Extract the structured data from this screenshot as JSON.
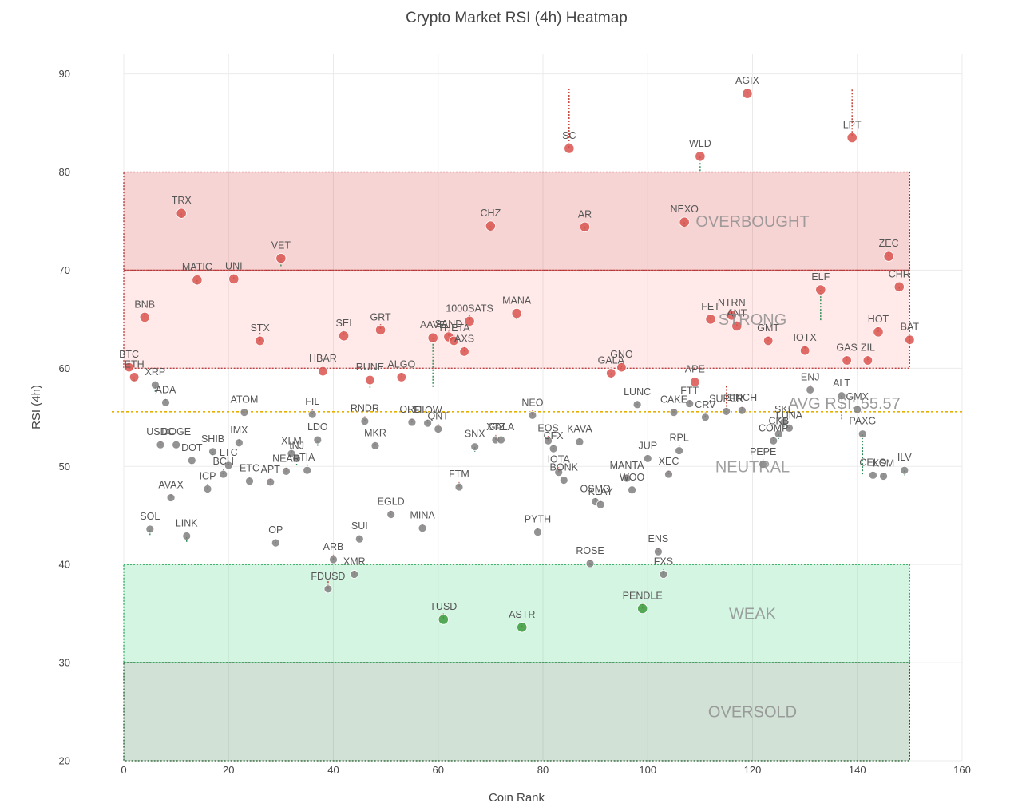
{
  "chart_data": {
    "type": "scatter",
    "title": "Crypto Market RSI (4h) Heatmap",
    "xlabel": "Coin Rank",
    "ylabel": "RSI (4h)",
    "xlim": [
      0,
      160
    ],
    "ylim": [
      20,
      92
    ],
    "xticks": [
      0,
      20,
      40,
      60,
      80,
      100,
      120,
      140,
      160
    ],
    "yticks": [
      20,
      30,
      40,
      50,
      60,
      70,
      80,
      90
    ],
    "grid": true,
    "avg_rsi": 55.57,
    "avg_label": "AVG RSI: 55.57",
    "colors": {
      "overbought": "#d62728",
      "strong": "#ff6b6b",
      "weak": "#2ecc71",
      "oversold": "#1e6b2e",
      "avg_line": "#e6b000",
      "point_red": "#d9534f",
      "point_green": "#3c9a3c",
      "point_gray": "#808080"
    },
    "zones": [
      {
        "label": "OVERBOUGHT",
        "y0": 70,
        "y1": 80,
        "x0": 0,
        "x1": 150
      },
      {
        "label": "STRONG",
        "y0": 60,
        "y1": 70,
        "x0": 0,
        "x1": 150
      },
      {
        "label": "NEUTRAL",
        "y0": 40,
        "y1": 60,
        "x0": 0,
        "x1": 150
      },
      {
        "label": "WEAK",
        "y0": 30,
        "y1": 40,
        "x0": 0,
        "x1": 150
      },
      {
        "label": "OVERSOLD",
        "y0": 20,
        "y1": 30,
        "x0": 0,
        "x1": 150
      }
    ],
    "points": [
      {
        "name": "BTC",
        "x": 1,
        "y": 60.1,
        "y_prev": 60.8
      },
      {
        "name": "ETH",
        "x": 2,
        "y": 59.1,
        "y_prev": 58.7
      },
      {
        "name": "XRP",
        "x": 6,
        "y": 58.3,
        "y_prev": 57.6
      },
      {
        "name": "BNB",
        "x": 4,
        "y": 65.2,
        "y_prev": 65.6
      },
      {
        "name": "ADA",
        "x": 8,
        "y": 56.5,
        "y_prev": 56.9
      },
      {
        "name": "USDC",
        "x": 7,
        "y": 52.2,
        "y_prev": 52.6
      },
      {
        "name": "DOGE",
        "x": 10,
        "y": 52.2,
        "y_prev": 51.8
      },
      {
        "name": "DOT",
        "x": 13,
        "y": 50.6,
        "y_prev": 50.2
      },
      {
        "name": "TRX",
        "x": 11,
        "y": 75.8,
        "y_prev": 75.3
      },
      {
        "name": "AVAX",
        "x": 9,
        "y": 46.8,
        "y_prev": 47.2
      },
      {
        "name": "SOL",
        "x": 5,
        "y": 43.6,
        "y_prev": 43.0
      },
      {
        "name": "LINK",
        "x": 12,
        "y": 42.9,
        "y_prev": 42.3
      },
      {
        "name": "MATIC",
        "x": 14,
        "y": 69.0,
        "y_prev": 68.5
      },
      {
        "name": "SHIB",
        "x": 17,
        "y": 51.5,
        "y_prev": 51.1
      },
      {
        "name": "ICP",
        "x": 16,
        "y": 47.7,
        "y_prev": 48.2
      },
      {
        "name": "LTC",
        "x": 20,
        "y": 50.1,
        "y_prev": 50.6
      },
      {
        "name": "BCH",
        "x": 19,
        "y": 49.2,
        "y_prev": 49.7
      },
      {
        "name": "UNI",
        "x": 21,
        "y": 69.1,
        "y_prev": 69.6
      },
      {
        "name": "IMX",
        "x": 22,
        "y": 52.4,
        "y_prev": 52.8
      },
      {
        "name": "ATOM",
        "x": 23,
        "y": 55.5,
        "y_prev": 55.9
      },
      {
        "name": "ETC",
        "x": 24,
        "y": 48.5,
        "y_prev": 48.9
      },
      {
        "name": "STX",
        "x": 26,
        "y": 62.8,
        "y_prev": 63.6
      },
      {
        "name": "APT",
        "x": 28,
        "y": 48.4,
        "y_prev": 48.8
      },
      {
        "name": "OP",
        "x": 29,
        "y": 42.2,
        "y_prev": 42.6
      },
      {
        "name": "VET",
        "x": 30,
        "y": 71.2,
        "y_prev": 70.4
      },
      {
        "name": "NEAR",
        "x": 31,
        "y": 49.5,
        "y_prev": 49.9
      },
      {
        "name": "XLM",
        "x": 32,
        "y": 51.3,
        "y_prev": 51.9
      },
      {
        "name": "INJ",
        "x": 33,
        "y": 50.8,
        "y_prev": 50.1
      },
      {
        "name": "TIA",
        "x": 35,
        "y": 49.6,
        "y_prev": 50.2
      },
      {
        "name": "FIL",
        "x": 36,
        "y": 55.3,
        "y_prev": 55.8
      },
      {
        "name": "LDO",
        "x": 37,
        "y": 52.7,
        "y_prev": 52.1
      },
      {
        "name": "HBAR",
        "x": 38,
        "y": 59.7,
        "y_prev": 60.2
      },
      {
        "name": "ARB",
        "x": 40,
        "y": 40.5,
        "y_prev": 41.0
      },
      {
        "name": "FDUSD",
        "x": 39,
        "y": 37.5,
        "y_prev": 38.3
      },
      {
        "name": "SEI",
        "x": 42,
        "y": 63.3,
        "y_prev": 63.9
      },
      {
        "name": "XMR",
        "x": 44,
        "y": 39.0,
        "y_prev": 39.4
      },
      {
        "name": "SUI",
        "x": 45,
        "y": 42.6,
        "y_prev": 43.0
      },
      {
        "name": "RNDR",
        "x": 46,
        "y": 54.6,
        "y_prev": 55.1
      },
      {
        "name": "RUNE",
        "x": 47,
        "y": 58.8,
        "y_prev": 58.0
      },
      {
        "name": "MKR",
        "x": 48,
        "y": 52.1,
        "y_prev": 52.6
      },
      {
        "name": "GRT",
        "x": 49,
        "y": 63.9,
        "y_prev": 64.5
      },
      {
        "name": "EGLD",
        "x": 51,
        "y": 45.1,
        "y_prev": 45.5
      },
      {
        "name": "ALGO",
        "x": 53,
        "y": 59.1,
        "y_prev": 59.5
      },
      {
        "name": "ORDI",
        "x": 55,
        "y": 54.5,
        "y_prev": 54.9
      },
      {
        "name": "MINA",
        "x": 57,
        "y": 43.7,
        "y_prev": 44.1
      },
      {
        "name": "FLOW",
        "x": 58,
        "y": 54.4,
        "y_prev": 54.8
      },
      {
        "name": "AAVE",
        "x": 59,
        "y": 63.1,
        "y_prev": 58.1
      },
      {
        "name": "QNT",
        "x": 60,
        "y": 53.8,
        "y_prev": 54.3
      },
      {
        "name": "TUSD",
        "x": 61,
        "y": 34.4,
        "y_prev": 35.0
      },
      {
        "name": "SAND",
        "x": 62,
        "y": 63.2,
        "y_prev": 63.8
      },
      {
        "name": "THETA",
        "x": 63,
        "y": 62.8,
        "y_prev": 63.4
      },
      {
        "name": "FTM",
        "x": 64,
        "y": 47.9,
        "y_prev": 48.4
      },
      {
        "name": "AXS",
        "x": 65,
        "y": 61.7,
        "y_prev": 62.2
      },
      {
        "name": "1000SATS",
        "x": 66,
        "y": 64.8,
        "y_prev": 65.4
      },
      {
        "name": "SNX",
        "x": 67,
        "y": 52.0,
        "y_prev": 51.5
      },
      {
        "name": "XTZ",
        "x": 71,
        "y": 52.7,
        "y_prev": 53.2
      },
      {
        "name": "GALA",
        "x": 72,
        "y": 52.7,
        "y_prev": 53.1
      },
      {
        "name": "CHZ",
        "x": 70,
        "y": 74.5,
        "y_prev": 74.0
      },
      {
        "name": "MANA",
        "x": 75,
        "y": 65.6,
        "y_prev": 65.0
      },
      {
        "name": "ASTR",
        "x": 76,
        "y": 33.6,
        "y_prev": 34.1
      },
      {
        "name": "NEO",
        "x": 78,
        "y": 55.2,
        "y_prev": 55.7
      },
      {
        "name": "PYTH",
        "x": 79,
        "y": 43.3,
        "y_prev": 43.7
      },
      {
        "name": "EOS",
        "x": 81,
        "y": 52.6,
        "y_prev": 53.1
      },
      {
        "name": "CFX",
        "x": 82,
        "y": 51.8,
        "y_prev": 52.2
      },
      {
        "name": "IOTA",
        "x": 83,
        "y": 49.4,
        "y_prev": 49.9
      },
      {
        "name": "BONK",
        "x": 84,
        "y": 48.6,
        "y_prev": 48.1
      },
      {
        "name": "SC",
        "x": 85,
        "y": 82.4,
        "y_prev": 88.5
      },
      {
        "name": "KAVA",
        "x": 87,
        "y": 52.5,
        "y_prev": 52.9
      },
      {
        "name": "AR",
        "x": 88,
        "y": 74.4,
        "y_prev": 73.9
      },
      {
        "name": "ROSE",
        "x": 89,
        "y": 40.1,
        "y_prev": 40.5
      },
      {
        "name": "OSMO",
        "x": 90,
        "y": 46.4,
        "y_prev": 46.8
      },
      {
        "name": "KLAY",
        "x": 91,
        "y": 46.1,
        "y_prev": 46.5
      },
      {
        "name": "GALA",
        "x": 93,
        "y": 59.5,
        "y_prev": 59.0
      },
      {
        "name": "GNO",
        "x": 95,
        "y": 60.1,
        "y_prev": 60.6
      },
      {
        "name": "MANTA",
        "x": 96,
        "y": 48.8,
        "y_prev": 49.2
      },
      {
        "name": "WOO",
        "x": 97,
        "y": 47.6,
        "y_prev": 48.0
      },
      {
        "name": "LUNC",
        "x": 98,
        "y": 56.3,
        "y_prev": 56.7
      },
      {
        "name": "PENDLE",
        "x": 99,
        "y": 35.5,
        "y_prev": 36.0
      },
      {
        "name": "JUP",
        "x": 100,
        "y": 50.8,
        "y_prev": 51.2
      },
      {
        "name": "ENS",
        "x": 102,
        "y": 41.3,
        "y_prev": 41.7
      },
      {
        "name": "FXS",
        "x": 103,
        "y": 39.0,
        "y_prev": 39.5
      },
      {
        "name": "XEC",
        "x": 104,
        "y": 49.2,
        "y_prev": 49.6
      },
      {
        "name": "CAKE",
        "x": 105,
        "y": 55.5,
        "y_prev": 55.9
      },
      {
        "name": "RPL",
        "x": 106,
        "y": 51.6,
        "y_prev": 52.1
      },
      {
        "name": "NEXO",
        "x": 107,
        "y": 74.9,
        "y_prev": 74.4
      },
      {
        "name": "FTT",
        "x": 108,
        "y": 56.4,
        "y_prev": 56.8
      },
      {
        "name": "APE",
        "x": 109,
        "y": 58.6,
        "y_prev": 59.1
      },
      {
        "name": "WLD",
        "x": 110,
        "y": 81.6,
        "y_prev": 80.1
      },
      {
        "name": "CRV",
        "x": 111,
        "y": 55.0,
        "y_prev": 55.5
      },
      {
        "name": "FET",
        "x": 112,
        "y": 65.0,
        "y_prev": 65.5
      },
      {
        "name": "SUPER",
        "x": 115,
        "y": 55.6,
        "y_prev": 58.2
      },
      {
        "name": "NTRN",
        "x": 116,
        "y": 65.4,
        "y_prev": 66.0
      },
      {
        "name": "ANT",
        "x": 117,
        "y": 64.3,
        "y_prev": 64.8
      },
      {
        "name": "1INCH",
        "x": 118,
        "y": 55.7,
        "y_prev": 56.1
      },
      {
        "name": "AGIX",
        "x": 119,
        "y": 88.0,
        "y_prev": 88.5
      },
      {
        "name": "PEPE",
        "x": 122,
        "y": 50.2,
        "y_prev": 50.7
      },
      {
        "name": "GMT",
        "x": 123,
        "y": 62.8,
        "y_prev": 63.2
      },
      {
        "name": "COMP",
        "x": 124,
        "y": 52.6,
        "y_prev": 53.0
      },
      {
        "name": "CKB",
        "x": 125,
        "y": 53.3,
        "y_prev": 52.8
      },
      {
        "name": "SKL",
        "x": 126,
        "y": 54.5,
        "y_prev": 54.0
      },
      {
        "name": "LUNA",
        "x": 127,
        "y": 53.9,
        "y_prev": 54.3
      },
      {
        "name": "IOTX",
        "x": 130,
        "y": 61.8,
        "y_prev": 62.2
      },
      {
        "name": "ENJ",
        "x": 131,
        "y": 57.8,
        "y_prev": 58.3
      },
      {
        "name": "ELF",
        "x": 133,
        "y": 68.0,
        "y_prev": 64.9
      },
      {
        "name": "ALT",
        "x": 137,
        "y": 57.2,
        "y_prev": 54.8
      },
      {
        "name": "GAS",
        "x": 138,
        "y": 60.8,
        "y_prev": 61.2
      },
      {
        "name": "LPT",
        "x": 139,
        "y": 83.5,
        "y_prev": 88.4
      },
      {
        "name": "GMX",
        "x": 140,
        "y": 55.8,
        "y_prev": 56.2
      },
      {
        "name": "PAXG",
        "x": 141,
        "y": 53.3,
        "y_prev": 49.2
      },
      {
        "name": "CELO",
        "x": 143,
        "y": 49.1,
        "y_prev": 49.5
      },
      {
        "name": "ZIL",
        "x": 142,
        "y": 60.8,
        "y_prev": 61.3
      },
      {
        "name": "HOT",
        "x": 144,
        "y": 63.7,
        "y_prev": 64.2
      },
      {
        "name": "KSM",
        "x": 145,
        "y": 49.0,
        "y_prev": 49.4
      },
      {
        "name": "ZEC",
        "x": 146,
        "y": 71.4,
        "y_prev": 71.9
      },
      {
        "name": "CHR",
        "x": 148,
        "y": 68.3,
        "y_prev": 67.8
      },
      {
        "name": "ILV",
        "x": 149,
        "y": 49.6,
        "y_prev": 49.1
      },
      {
        "name": "BAT",
        "x": 150,
        "y": 62.9,
        "y_prev": 63.3
      }
    ]
  }
}
